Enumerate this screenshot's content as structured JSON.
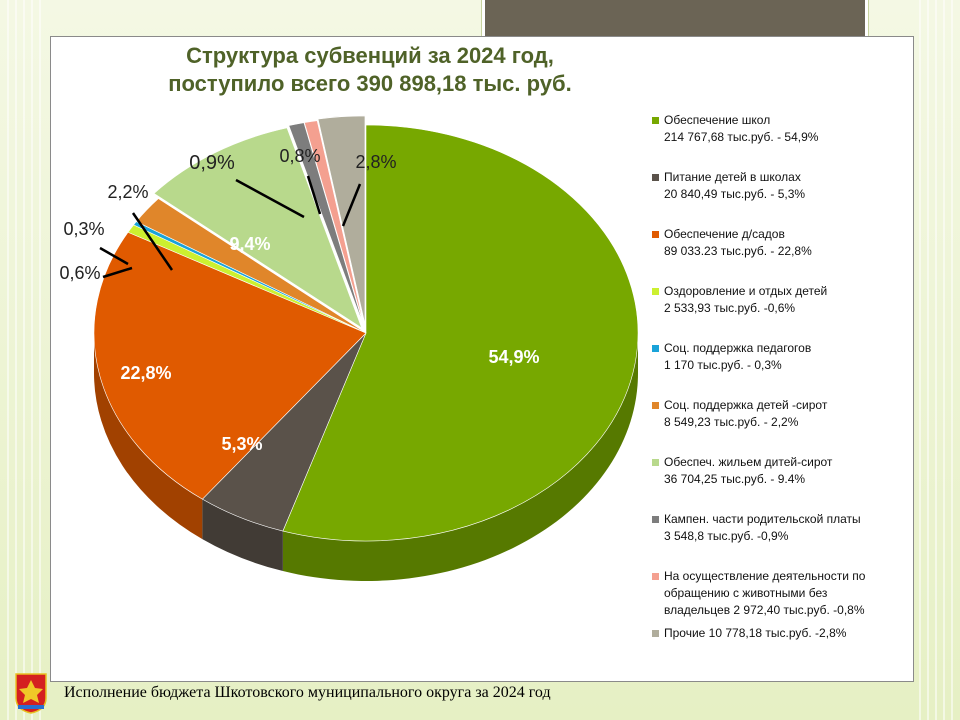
{
  "title": {
    "line1": "Структура субвенций за 2024 год,",
    "line2": "поступило всего 390 898,18 тыс. руб."
  },
  "footer": "Исполнение бюджета Шкотовского муниципального округа за 2024 год",
  "legend": [
    {
      "lines": [
        "Обеспечение  школ",
        "214 767,68 тыс.руб. - 54,9%"
      ],
      "color": "#77a800"
    },
    {
      "lines": [
        "Питание детей в школах",
        "20 840,49  тыс.руб. - 5,3%"
      ],
      "color": "#5a524a"
    },
    {
      "lines": [
        "Обеспечение  д/садов",
        "89 033.23  тыс.руб. - 22,8%"
      ],
      "color": "#e05a00"
    },
    {
      "lines": [
        "Оздоровление и отдых детей",
        "2 533,93 тыс.руб. -0,6%"
      ],
      "color": "#ccf030"
    },
    {
      "lines": [
        "Соц. поддержка педагогов",
        "1 170 тыс.руб. - 0,3%"
      ],
      "color": "#1aa3d9"
    },
    {
      "lines": [
        "Соц. поддержка детей -сирот",
        "8 549,23 тыс.руб. - 2,2%"
      ],
      "color": "#e0862a"
    },
    {
      "lines": [
        "Обеспеч. жильем дитей-сирот",
        "36 704,25 тыс.руб. - 9.4%"
      ],
      "color": "#b8d98c"
    },
    {
      "lines": [
        "Кампен. части родительской платы",
        "3 548,8 тыс.руб. -0,9%"
      ],
      "color": "#7d7d7d"
    },
    {
      "lines": [
        "На осуществление  деятельности по",
        "обращению с животными без",
        "владельцев  2 972,40 тыс.руб. -0,8%"
      ],
      "color": "#f4a090"
    },
    {
      "lines": [
        "Прочие 10 778,18 тыс.руб. -2,8%"
      ],
      "color": "#b0ad9c"
    }
  ],
  "chart_data": {
    "type": "pie",
    "title": "Структура субвенций за 2024 год, поступило всего 390 898,18 тыс. руб.",
    "unit": "тыс. руб.",
    "slices": [
      {
        "name": "Обеспечение  школ",
        "value": 214767.68,
        "percent": 54.9,
        "label": "54,9%",
        "color": "#77a800"
      },
      {
        "name": "Питание детей в школах",
        "value": 20840.49,
        "percent": 5.3,
        "label": "5,3%",
        "color": "#5a524a"
      },
      {
        "name": "Обеспечение  д/садов",
        "value": 89033.23,
        "percent": 22.8,
        "label": "22,8%",
        "color": "#e05a00"
      },
      {
        "name": "Оздоровление и отдых детей",
        "value": 2533.93,
        "percent": 0.6,
        "label": "0,6%",
        "color": "#ccf030"
      },
      {
        "name": "Соц. поддержка педагогов",
        "value": 1170,
        "percent": 0.3,
        "label": "0,3%",
        "color": "#1aa3d9"
      },
      {
        "name": "Соц. поддержка детей -сирот",
        "value": 8549.23,
        "percent": 2.2,
        "label": "2,2%",
        "color": "#e0862a"
      },
      {
        "name": "Обеспеч. жильем дитей-сирот",
        "value": 36704.25,
        "percent": 9.4,
        "label": "9,4%",
        "color": "#b8d98c"
      },
      {
        "name": "Кампен. части родительской платы",
        "value": 3548.8,
        "percent": 0.9,
        "label": "0,9%",
        "color": "#7d7d7d"
      },
      {
        "name": "На осуществление  деятельности по обращению с животными без владельцев",
        "value": 2972.4,
        "percent": 0.8,
        "label": "0,8%",
        "color": "#f4a090"
      },
      {
        "name": "Прочие",
        "value": 10778.18,
        "percent": 2.8,
        "label": "2,8%",
        "color": "#b0ad9c"
      }
    ],
    "legend_position": "right"
  }
}
